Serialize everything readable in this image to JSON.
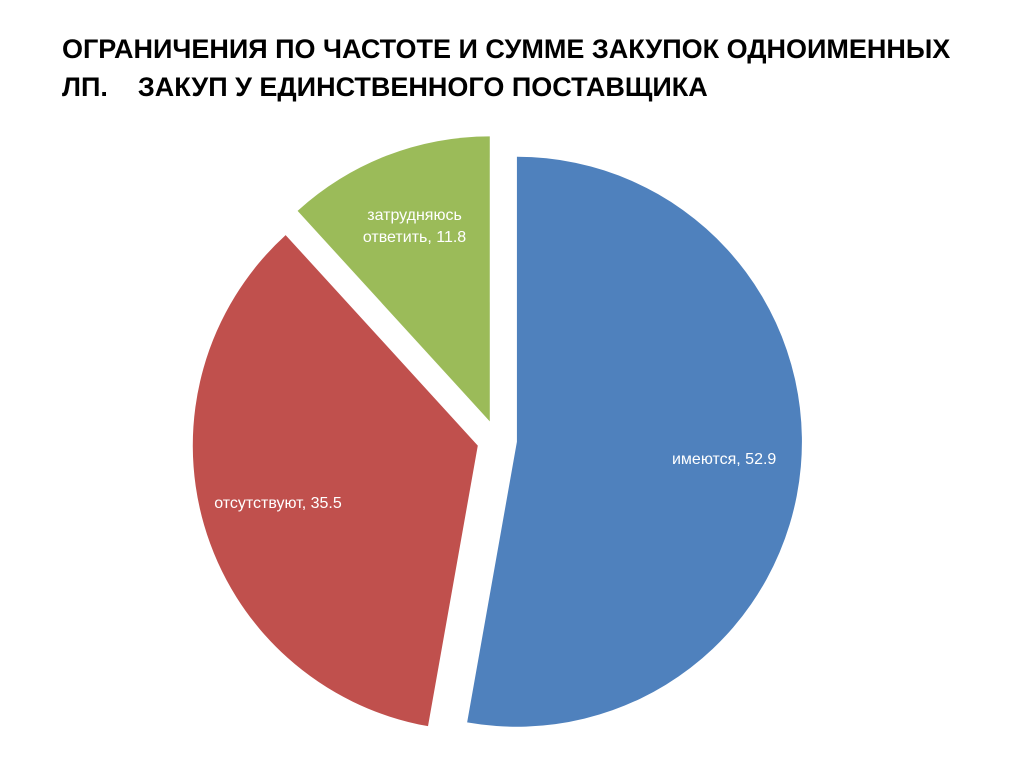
{
  "chart_data": {
    "type": "pie",
    "title": "ОГРАНИЧЕНИЯ ПО ЧАСТОТЕ И СУММЕ ЗАКУПОК ОДНОИМЕННЫХ ЛП.    ЗАКУП У ЕДИНСТВЕННОГО ПОСТАВЩИКА",
    "values": [
      52.9,
      35.5,
      11.8
    ],
    "value_labels": [
      "имеются, 52.9",
      "отсутствуют, 35.5",
      "затрудняюсь ответить, 11.8"
    ],
    "colors": [
      "#4f81bd",
      "#c0504d",
      "#9bbb59"
    ]
  }
}
